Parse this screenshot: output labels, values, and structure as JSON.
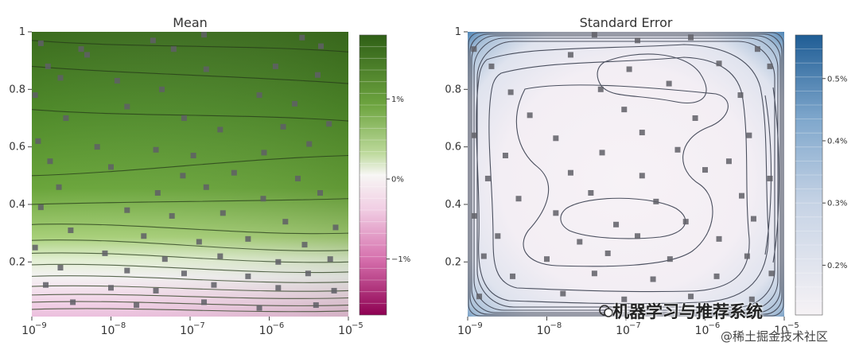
{
  "chart_data": [
    {
      "type": "heatmap",
      "title": "Mean",
      "x_scale": "log",
      "xlim": [
        1e-09,
        1e-05
      ],
      "ylim": [
        0.01,
        1
      ],
      "x_ticks": [
        1e-09,
        1e-08,
        1e-07,
        1e-06,
        1e-05
      ],
      "x_tick_labels": [
        "10",
        "10",
        "10",
        "10",
        "10"
      ],
      "x_tick_exponents": [
        "−9",
        "−8",
        "−7",
        "−6",
        "−5"
      ],
      "y_ticks": [
        0.2,
        0.4,
        0.6,
        0.8,
        1
      ],
      "y_tick_labels": [
        "0.2",
        "0.4",
        "0.6",
        "0.8",
        "1"
      ],
      "colorbar": {
        "ticks": [
          1,
          0,
          -1
        ],
        "tick_labels": [
          "1%",
          "0%",
          "−1%"
        ],
        "range": [
          -1.7,
          1.8
        ],
        "colors": {
          "high": "#2f5f16",
          "mid": "#f7f6f4",
          "low": "#8e0152"
        }
      },
      "contour_levels_y_at_left": [
        0.97,
        0.88,
        0.73,
        0.5,
        0.4,
        0.33,
        0.275,
        0.23,
        0.19,
        0.15,
        0.115,
        0.085,
        0.06,
        0.035
      ],
      "contour_levels_y_at_right": [
        0.93,
        0.82,
        0.69,
        0.57,
        0.42,
        0.3,
        0.24,
        0.2,
        0.165,
        0.13,
        0.1,
        0.075,
        0.05,
        0.03
      ],
      "samples": [
        {
          "x": 1.3e-09,
          "y": 0.96
        },
        {
          "x": 1.6e-09,
          "y": 0.88
        },
        {
          "x": 4.2e-09,
          "y": 0.94
        },
        {
          "x": 5e-09,
          "y": 0.92
        },
        {
          "x": 3.4e-08,
          "y": 0.97
        },
        {
          "x": 6.2e-08,
          "y": 0.94
        },
        {
          "x": 1.5e-07,
          "y": 0.99
        },
        {
          "x": 2.6e-06,
          "y": 0.98
        },
        {
          "x": 4.5e-06,
          "y": 0.95
        },
        {
          "x": 2.3e-09,
          "y": 0.84
        },
        {
          "x": 1.2e-08,
          "y": 0.83
        },
        {
          "x": 1.6e-07,
          "y": 0.87
        },
        {
          "x": 1.2e-06,
          "y": 0.88
        },
        {
          "x": 4.1e-06,
          "y": 0.85
        },
        {
          "x": 1.1e-09,
          "y": 0.78
        },
        {
          "x": 4.4e-08,
          "y": 0.8
        },
        {
          "x": 7.5e-07,
          "y": 0.78
        },
        {
          "x": 2.1e-06,
          "y": 0.75
        },
        {
          "x": 2.7e-09,
          "y": 0.7
        },
        {
          "x": 1.6e-08,
          "y": 0.74
        },
        {
          "x": 8.4e-08,
          "y": 0.7
        },
        {
          "x": 2.4e-07,
          "y": 0.66
        },
        {
          "x": 1.5e-06,
          "y": 0.67
        },
        {
          "x": 5.7e-06,
          "y": 0.68
        },
        {
          "x": 1.2e-09,
          "y": 0.62
        },
        {
          "x": 6.7e-09,
          "y": 0.6
        },
        {
          "x": 3.7e-08,
          "y": 0.59
        },
        {
          "x": 1.1e-07,
          "y": 0.57
        },
        {
          "x": 8.6e-07,
          "y": 0.58
        },
        {
          "x": 3.2e-06,
          "y": 0.61
        },
        {
          "x": 1.7e-09,
          "y": 0.55
        },
        {
          "x": 1e-08,
          "y": 0.53
        },
        {
          "x": 8.1e-08,
          "y": 0.5
        },
        {
          "x": 3.6e-07,
          "y": 0.51
        },
        {
          "x": 2.3e-06,
          "y": 0.49
        },
        {
          "x": 2.2e-09,
          "y": 0.46
        },
        {
          "x": 3.9e-08,
          "y": 0.44
        },
        {
          "x": 1.6e-07,
          "y": 0.46
        },
        {
          "x": 8.4e-07,
          "y": 0.42
        },
        {
          "x": 4.4e-06,
          "y": 0.44
        },
        {
          "x": 1.3e-09,
          "y": 0.39
        },
        {
          "x": 1.6e-08,
          "y": 0.38
        },
        {
          "x": 5.9e-08,
          "y": 0.36
        },
        {
          "x": 2.6e-07,
          "y": 0.37
        },
        {
          "x": 1.6e-06,
          "y": 0.34
        },
        {
          "x": 6.9e-06,
          "y": 0.32
        },
        {
          "x": 3.1e-09,
          "y": 0.31
        },
        {
          "x": 2.6e-08,
          "y": 0.29
        },
        {
          "x": 1.3e-07,
          "y": 0.27
        },
        {
          "x": 5.4e-07,
          "y": 0.28
        },
        {
          "x": 2.8e-06,
          "y": 0.26
        },
        {
          "x": 1.1e-09,
          "y": 0.25
        },
        {
          "x": 8.4e-09,
          "y": 0.23
        },
        {
          "x": 4.8e-08,
          "y": 0.21
        },
        {
          "x": 2.4e-07,
          "y": 0.22
        },
        {
          "x": 1.3e-06,
          "y": 0.2
        },
        {
          "x": 5.9e-06,
          "y": 0.21
        },
        {
          "x": 2.3e-09,
          "y": 0.18
        },
        {
          "x": 1.6e-08,
          "y": 0.17
        },
        {
          "x": 8.4e-08,
          "y": 0.16
        },
        {
          "x": 5.4e-07,
          "y": 0.15
        },
        {
          "x": 3.1e-06,
          "y": 0.16
        },
        {
          "x": 1.5e-09,
          "y": 0.12
        },
        {
          "x": 1e-08,
          "y": 0.11
        },
        {
          "x": 3.7e-08,
          "y": 0.1
        },
        {
          "x": 2e-07,
          "y": 0.12
        },
        {
          "x": 1.3e-06,
          "y": 0.11
        },
        {
          "x": 6.6e-06,
          "y": 0.1
        },
        {
          "x": 3.3e-09,
          "y": 0.06
        },
        {
          "x": 2.1e-08,
          "y": 0.05
        },
        {
          "x": 1.5e-07,
          "y": 0.06
        },
        {
          "x": 7.5e-07,
          "y": 0.04
        },
        {
          "x": 3.9e-06,
          "y": 0.05
        }
      ]
    },
    {
      "type": "heatmap",
      "title": "Standard Error",
      "x_scale": "log",
      "xlim": [
        1e-09,
        1e-05
      ],
      "ylim": [
        0.01,
        1
      ],
      "x_ticks": [
        1e-09,
        1e-08,
        1e-07,
        1e-06,
        1e-05
      ],
      "x_tick_labels": [
        "10",
        "10",
        "10",
        "10",
        "10"
      ],
      "x_tick_exponents": [
        "−9",
        "−8",
        "−7",
        "−6",
        "−5"
      ],
      "y_ticks": [
        0.2,
        0.4,
        0.6,
        0.8,
        1
      ],
      "y_tick_labels": [
        "0.2",
        "0.4",
        "0.6",
        "0.8",
        "1"
      ],
      "colorbar": {
        "ticks": [
          0.2,
          0.3,
          0.4,
          0.5
        ],
        "tick_labels": [
          "0.2%",
          "0.3%",
          "0.4%",
          "0.5%"
        ],
        "range": [
          0.12,
          0.57
        ],
        "colors": {
          "high": "#1f5d95",
          "low": "#f6f2f5"
        }
      },
      "samples": [
        {
          "x": 1.2e-09,
          "y": 0.94
        },
        {
          "x": 4e-08,
          "y": 0.99
        },
        {
          "x": 1.4e-07,
          "y": 0.97
        },
        {
          "x": 6.6e-07,
          "y": 0.98
        },
        {
          "x": 4.6e-06,
          "y": 0.94
        },
        {
          "x": 2e-09,
          "y": 0.88
        },
        {
          "x": 2e-08,
          "y": 0.92
        },
        {
          "x": 1.1e-07,
          "y": 0.87
        },
        {
          "x": 1.5e-06,
          "y": 0.89
        },
        {
          "x": 6.6e-06,
          "y": 0.88
        },
        {
          "x": 3.5e-09,
          "y": 0.79
        },
        {
          "x": 4.8e-08,
          "y": 0.8
        },
        {
          "x": 3.5e-07,
          "y": 0.82
        },
        {
          "x": 2.8e-06,
          "y": 0.78
        },
        {
          "x": 6.1e-09,
          "y": 0.71
        },
        {
          "x": 9.5e-08,
          "y": 0.73
        },
        {
          "x": 7.5e-07,
          "y": 0.7
        },
        {
          "x": 1.2e-09,
          "y": 0.64
        },
        {
          "x": 1.3e-08,
          "y": 0.63
        },
        {
          "x": 1.6e-07,
          "y": 0.65
        },
        {
          "x": 3.6e-06,
          "y": 0.64
        },
        {
          "x": 3e-09,
          "y": 0.57
        },
        {
          "x": 5e-08,
          "y": 0.58
        },
        {
          "x": 4.5e-07,
          "y": 0.59
        },
        {
          "x": 2e-06,
          "y": 0.55
        },
        {
          "x": 1.8e-09,
          "y": 0.49
        },
        {
          "x": 2e-08,
          "y": 0.51
        },
        {
          "x": 1.6e-07,
          "y": 0.5
        },
        {
          "x": 1e-06,
          "y": 0.52
        },
        {
          "x": 6.6e-06,
          "y": 0.49
        },
        {
          "x": 4.4e-09,
          "y": 0.42
        },
        {
          "x": 3.6e-08,
          "y": 0.44
        },
        {
          "x": 2.4e-07,
          "y": 0.41
        },
        {
          "x": 2.9e-06,
          "y": 0.43
        },
        {
          "x": 1.2e-09,
          "y": 0.36
        },
        {
          "x": 1.3e-08,
          "y": 0.37
        },
        {
          "x": 7.5e-08,
          "y": 0.33
        },
        {
          "x": 5.7e-07,
          "y": 0.34
        },
        {
          "x": 4.1e-06,
          "y": 0.35
        },
        {
          "x": 2.4e-09,
          "y": 0.29
        },
        {
          "x": 2.6e-08,
          "y": 0.27
        },
        {
          "x": 1.4e-07,
          "y": 0.29
        },
        {
          "x": 1.5e-06,
          "y": 0.28
        },
        {
          "x": 1.6e-09,
          "y": 0.22
        },
        {
          "x": 1e-08,
          "y": 0.21
        },
        {
          "x": 5.9e-08,
          "y": 0.23
        },
        {
          "x": 3.6e-07,
          "y": 0.21
        },
        {
          "x": 3.4e-06,
          "y": 0.22
        },
        {
          "x": 3.7e-09,
          "y": 0.15
        },
        {
          "x": 4e-08,
          "y": 0.16
        },
        {
          "x": 2.2e-07,
          "y": 0.14
        },
        {
          "x": 1.4e-06,
          "y": 0.15
        },
        {
          "x": 6.9e-06,
          "y": 0.16
        },
        {
          "x": 1.4e-09,
          "y": 0.08
        },
        {
          "x": 1.6e-08,
          "y": 0.09
        },
        {
          "x": 9.5e-08,
          "y": 0.07
        },
        {
          "x": 6.6e-07,
          "y": 0.08
        },
        {
          "x": 3.9e-06,
          "y": 0.07
        }
      ]
    }
  ],
  "watermark": {
    "primary": "机器学习与推荐系统",
    "secondary": "@稀土掘金技术社区"
  }
}
